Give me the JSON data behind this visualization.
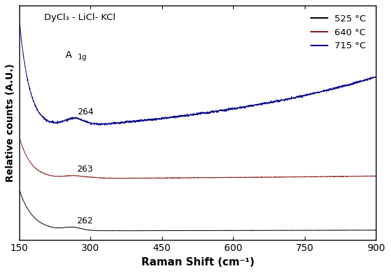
{
  "title": "DyCl₃ - LiCl- KCl",
  "xlabel": "Raman Shift (cm⁻¹)",
  "ylabel": "Relative counts (A.U.)",
  "xmin": 150,
  "xmax": 900,
  "xticks": [
    150,
    300,
    450,
    600,
    750,
    900
  ],
  "legend_labels": [
    "525 °C",
    "640 °C",
    "715 °C"
  ],
  "colors": [
    "#000000",
    "#8B1A1A",
    "#00008B"
  ],
  "a1g_label": "A",
  "a1g_sub": "1g",
  "peak_labels": [
    "262",
    "263",
    "264"
  ],
  "background_color": "white",
  "figsize": [
    5.67,
    3.96
  ],
  "dpi": 100
}
